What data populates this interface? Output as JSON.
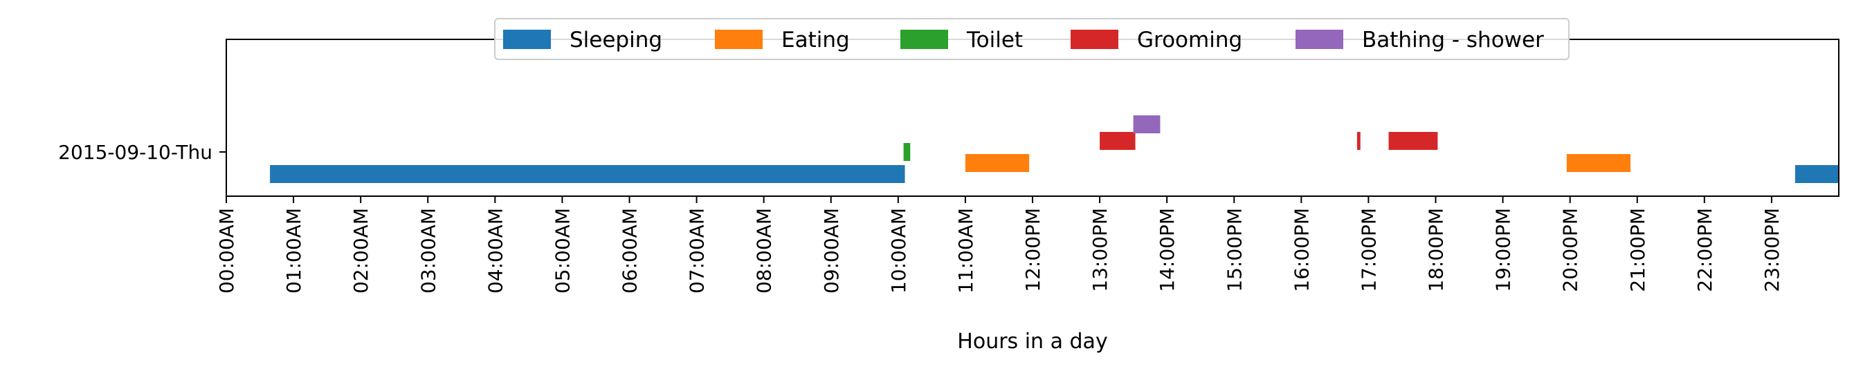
{
  "chart_data": {
    "type": "timeline",
    "xlabel": "Hours in a day",
    "ylabel": "",
    "xlim": [
      0,
      24
    ],
    "x_unit": "hours",
    "grid": false,
    "legend_placement": "top-center",
    "rows": [
      "2015-09-10-Thu"
    ],
    "x_tick_labels": [
      "00:00AM",
      "01:00AM",
      "02:00AM",
      "03:00AM",
      "04:00AM",
      "05:00AM",
      "06:00AM",
      "07:00AM",
      "08:00AM",
      "09:00AM",
      "10:00AM",
      "11:00AM",
      "12:00PM",
      "13:00PM",
      "14:00PM",
      "15:00PM",
      "16:00PM",
      "17:00PM",
      "18:00PM",
      "19:00PM",
      "20:00PM",
      "21:00PM",
      "22:00PM",
      "23:00PM"
    ],
    "series": [
      {
        "name": "Sleeping",
        "color": "#1f77b4",
        "intervals": [
          {
            "start": 0.65,
            "end": 10.1
          },
          {
            "start": 23.35,
            "end": 24.0
          }
        ]
      },
      {
        "name": "Eating",
        "color": "#ff7f0e",
        "intervals": [
          {
            "start": 11.0,
            "end": 11.95
          },
          {
            "start": 19.95,
            "end": 20.9
          }
        ]
      },
      {
        "name": "Toilet",
        "color": "#2ca02c",
        "intervals": [
          {
            "start": 10.08,
            "end": 10.18
          }
        ]
      },
      {
        "name": "Grooming",
        "color": "#d62728",
        "intervals": [
          {
            "start": 13.0,
            "end": 13.53
          },
          {
            "start": 16.83,
            "end": 16.88
          },
          {
            "start": 17.3,
            "end": 18.03
          }
        ]
      },
      {
        "name": "Bathing - shower",
        "color": "#9467bd",
        "intervals": [
          {
            "start": 13.5,
            "end": 13.9
          }
        ]
      }
    ]
  }
}
